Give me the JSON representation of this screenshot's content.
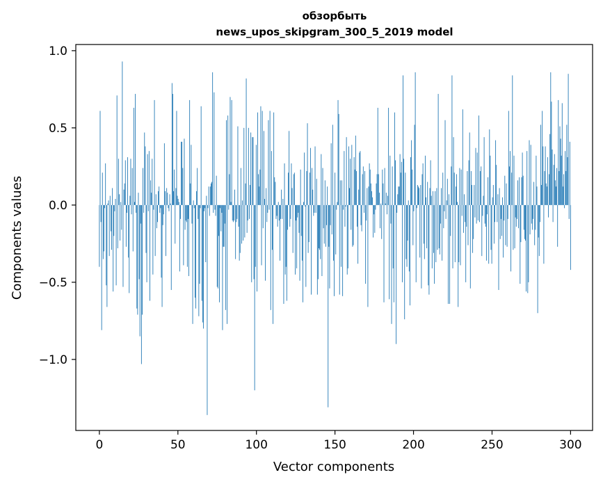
{
  "chart_data": {
    "type": "bar",
    "title_line1": "обзорбыть",
    "title_line2": "news_upos_skipgram_300_5_2019 model",
    "xlabel": "Vector components",
    "ylabel": "Components values",
    "xlim": [
      -15,
      314
    ],
    "ylim": [
      -1.46,
      1.04
    ],
    "x_ticks": [
      0,
      50,
      100,
      150,
      200,
      250,
      300
    ],
    "x_tick_labels": [
      "0",
      "50",
      "100",
      "150",
      "200",
      "250",
      "300"
    ],
    "y_ticks": [
      1.0,
      0.5,
      0.0,
      -0.5,
      -1.0
    ],
    "y_tick_labels": [
      "1.0",
      "0.5",
      "0.0",
      "−0.5",
      "−1.0"
    ],
    "bar_color": "#1f77b4",
    "grid": false,
    "series": [
      {
        "values": [
          -0.4,
          0.61,
          -0.11,
          -0.81,
          0.21,
          -0.35,
          -0.3,
          -0.02,
          0.27,
          -0.52,
          -0.66,
          0.01,
          0.03,
          -0.33,
          0.06,
          -0.17,
          -0.29,
          0.11,
          -0.56,
          -0.2,
          -0.04,
          0.04,
          -0.52,
          0.71,
          -0.28,
          0.3,
          0.07,
          -0.23,
          0.02,
          -0.16,
          0.93,
          -0.53,
          0.1,
          0.14,
          0.29,
          -0.27,
          -0.05,
          0.31,
          -0.34,
          -0.57,
          0.06,
          0.3,
          -0.06,
          0.24,
          -0.3,
          0.63,
          0.02,
          0.72,
          -0.05,
          -0.67,
          -0.71,
          0.08,
          -0.48,
          -0.85,
          -0.12,
          -1.03,
          -0.71,
          0.24,
          -0.05,
          0.47,
          0.38,
          -0.31,
          -0.5,
          0.33,
          -0.04,
          0.35,
          -0.62,
          0.16,
          0.08,
          0.3,
          -0.45,
          -0.03,
          0.68,
          -0.33,
          0.07,
          -0.15,
          -0.11,
          0.09,
          0.12,
          -0.05,
          -0.02,
          -0.47,
          -0.66,
          -0.13,
          -0.06,
          0.4,
          0.09,
          -0.33,
          0.11,
          0.08,
          -0.02,
          -0.04,
          0.07,
          0.01,
          -0.55,
          0.79,
          0.72,
          0.09,
          0.23,
          -0.25,
          0.11,
          0.61,
          0.06,
          0.04,
          0.02,
          -0.43,
          -0.09,
          0.41,
          0.41,
          0.24,
          -0.39,
          0.43,
          -0.16,
          -0.1,
          -0.11,
          -0.4,
          -0.09,
          -0.46,
          0.68,
          0.14,
          0.39,
          -0.12,
          -0.77,
          0.03,
          -0.02,
          -0.6,
          -0.67,
          0.09,
          0.24,
          -0.09,
          -0.72,
          -0.51,
          -0.02,
          0.64,
          -0.62,
          -0.76,
          -0.8,
          -0.04,
          -0.02,
          -0.37,
          0.06,
          -1.36,
          -0.02,
          0.12,
          -0.07,
          0.12,
          0.14,
          0.15,
          0.86,
          -0.05,
          0.73,
          -0.03,
          -0.07,
          0.19,
          -0.53,
          -0.54,
          -0.2,
          -0.63,
          -0.02,
          -0.17,
          -0.05,
          -0.81,
          -0.27,
          -0.27,
          -0.12,
          -0.68,
          0.55,
          -0.77,
          0.58,
          -0.03,
          0.2,
          0.7,
          0.02,
          0.68,
          -0.1,
          -0.11,
          -0.1,
          0.1,
          -0.35,
          -0.11,
          -0.09,
          0.51,
          -0.14,
          -0.36,
          -0.31,
          0.24,
          -0.25,
          0.03,
          -0.23,
          0.5,
          -0.21,
          0.14,
          0.82,
          -0.18,
          -0.1,
          0.5,
          -0.09,
          0.13,
          0.47,
          -0.5,
          0.44,
          0.44,
          -0.48,
          -1.2,
          -0.4,
          0.39,
          -0.56,
          0.6,
          0.2,
          0.12,
          0.23,
          0.64,
          -0.39,
          0.61,
          -0.15,
          0.48,
          0.04,
          -0.49,
          0.11,
          -0.11,
          -0.05,
          0.55,
          -0.03,
          0.61,
          -0.68,
          0.35,
          -0.29,
          -0.77,
          0.6,
          0.18,
          0.15,
          -0.09,
          -0.07,
          -0.14,
          0.02,
          -0.1,
          -0.36,
          -0.09,
          0.1,
          -0.09,
          0.04,
          -0.64,
          0.27,
          -0.45,
          -0.4,
          -0.62,
          -0.16,
          0.21,
          0.48,
          -0.14,
          -0.09,
          0.27,
          0.11,
          -0.31,
          0.2,
          0.21,
          -0.45,
          -0.1,
          -0.41,
          -0.08,
          -0.05,
          -0.18,
          -0.49,
          0.23,
          -0.2,
          -0.36,
          -0.63,
          0.02,
          0.34,
          -0.01,
          -0.53,
          0.22,
          0.53,
          -0.31,
          -0.24,
          0.21,
          0.37,
          -0.58,
          0.24,
          0.1,
          -0.07,
          -0.05,
          0.38,
          -0.05,
          0.17,
          -0.58,
          -0.48,
          -0.28,
          -0.29,
          -0.35,
          0.33,
          -0.46,
          0.24,
          -0.15,
          -0.25,
          0.16,
          -0.27,
          -0.13,
          0.12,
          -1.31,
          -0.27,
          -0.54,
          -0.13,
          0.4,
          -0.19,
          0.52,
          -0.36,
          -0.59,
          0.21,
          -0.32,
          -0.03,
          0.02,
          0.68,
          0.59,
          -0.58,
          0.16,
          -0.4,
          0.16,
          -0.59,
          -0.03,
          0.35,
          -0.14,
          -0.01,
          0.44,
          -0.45,
          -0.41,
          0.38,
          0.11,
          0.3,
          -0.16,
          0.39,
          -0.27,
          -0.26,
          0.31,
          0.23,
          0.45,
          0.22,
          -0.14,
          -0.38,
          0.1,
          0.34,
          0.35,
          -0.13,
          -0.17,
          0.2,
          0.25,
          -0.05,
          0.22,
          -0.51,
          -0.1,
          0.11,
          -0.66,
          0.12,
          0.27,
          0.23,
          0.14,
          0.09,
          0.05,
          -0.21,
          -0.06,
          -0.18,
          -0.03,
          0.14,
          0.2,
          0.63,
          0.2,
          0.08,
          -0.15,
          0.01,
          -0.22,
          0.23,
          0.14,
          -0.63,
          0.24,
          0.01,
          0.08,
          -0.06,
          0.06,
          0.63,
          -0.61,
          0.32,
          -0.12,
          -0.77,
          0.25,
          -0.41,
          -0.63,
          0.6,
          0.29,
          -0.9,
          -0.05,
          0.07,
          0.12,
          0.12,
          0.33,
          0.21,
          0.28,
          -0.5,
          0.84,
          0.3,
          -0.74,
          0.21,
          -0.35,
          -0.4,
          -0.23,
          0.03,
          -0.43,
          -0.65,
          0.31,
          0.42,
          0.23,
          -0.26,
          -0.04,
          0.52,
          0.86,
          -0.5,
          -0.02,
          0.13,
          0.12,
          0.11,
          -0.34,
          0.13,
          -0.54,
          0.2,
          0.27,
          -0.25,
          -0.35,
          0.32,
          0.05,
          -0.28,
          0.15,
          -0.52,
          -0.58,
          0.11,
          0.29,
          0.06,
          -0.41,
          0.09,
          -0.31,
          -0.51,
          0.09,
          -0.37,
          0.11,
          -0.29,
          0.72,
          -0.28,
          -0.32,
          -0.12,
          0.11,
          -0.36,
          0.21,
          -0.15,
          -0.04,
          0.55,
          -0.09,
          0.03,
          0.17,
          -0.64,
          0.07,
          -0.64,
          -0.2,
          0.25,
          0.84,
          -0.41,
          0.44,
          0.21,
          -0.37,
          0.12,
          0.2,
          0.02,
          -0.66,
          -0.37,
          0.24,
          -0.39,
          0.23,
          -0.07,
          0.62,
          -0.18,
          0.07,
          -0.11,
          -0.5,
          -0.14,
          0.22,
          -0.26,
          0.29,
          0.47,
          -0.54,
          0.22,
          0.13,
          -0.31,
          -0.22,
          0.13,
          -0.08,
          0.37,
          -0.12,
          0.34,
          -0.1,
          0.58,
          -0.11,
          0.22,
          0.25,
          -0.33,
          -0.07,
          0.06,
          0.44,
          -0.12,
          -0.14,
          -0.36,
          -0.06,
          0.18,
          -0.38,
          0.49,
          0.32,
          -0.29,
          -0.38,
          0.05,
          0.13,
          -0.25,
          -0.11,
          0.42,
          0.26,
          -0.11,
          0.07,
          -0.55,
          0.11,
          -0.22,
          -0.09,
          -0.2,
          0.05,
          -0.34,
          -0.1,
          0.19,
          -0.26,
          0.14,
          -0.27,
          -0.09,
          0.61,
          0.25,
          0.35,
          -0.43,
          0.21,
          0.84,
          -0.29,
          0.32,
          -0.28,
          -0.08,
          -0.14,
          -0.09,
          0.16,
          -0.15,
          0.18,
          -0.51,
          -0.24,
          0.18,
          0.34,
          0.19,
          -0.16,
          -0.22,
          -0.23,
          -0.56,
          0.35,
          -0.57,
          -0.5,
          0.42,
          -0.19,
          0.39,
          -0.12,
          -0.16,
          -0.09,
          0.15,
          -0.26,
          -0.16,
          0.32,
          0.12,
          -0.7,
          -0.21,
          -0.33,
          -0.11,
          0.52,
          0.13,
          0.61,
          0.38,
          -0.38,
          0.22,
          0.38,
          0.14,
          0.12,
          0.31,
          -0.08,
          0.2,
          0.46,
          0.86,
          0.67,
          0.36,
          -0.11,
          0.26,
          0.33,
          0.16,
          0.12,
          0.24,
          -0.27,
          0.68,
          0.22,
          0.51,
          0.43,
          0.32,
          0.66,
          0.12,
          0.2,
          -0.02,
          0.35,
          0.22,
          0.52,
          0.31,
          0.85,
          -0.09,
          0.41,
          -0.42
        ]
      }
    ]
  }
}
